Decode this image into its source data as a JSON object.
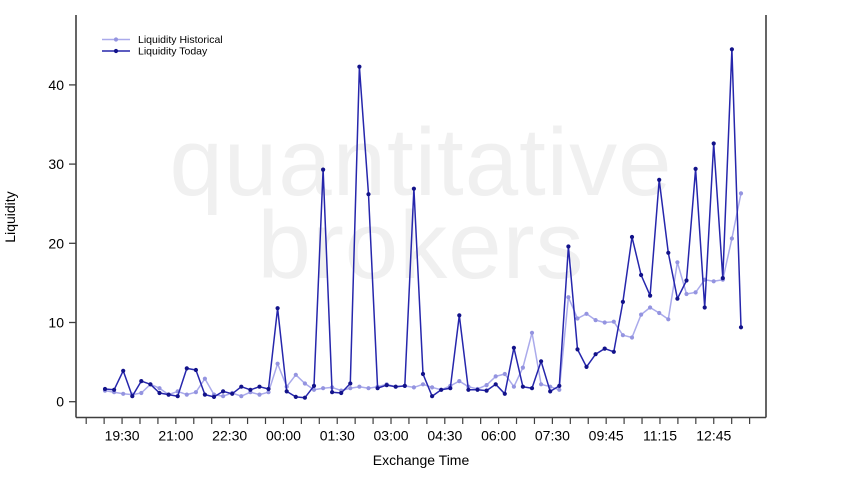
{
  "watermark": {
    "line1": "quantitative",
    "line2": "brokers"
  },
  "colors": {
    "background": "#ffffff",
    "axis": "#3f3f3f",
    "tick_label": "#000000",
    "watermark": "#f0f0f0",
    "historical": "#aaaaeb",
    "historical_marker": "#9494e0",
    "today": "#2626ac",
    "today_marker": "#12128a"
  },
  "chart_data": {
    "type": "line",
    "title": "",
    "xlabel": "Exchange Time",
    "ylabel": "Liquidity",
    "grid": false,
    "legend_position": "top-left",
    "x_tick_labels": [
      "19:30",
      "21:00",
      "22:30",
      "00:00",
      "01:30",
      "03:00",
      "04:30",
      "06:00",
      "07:30",
      "09:45",
      "11:15",
      "12:45"
    ],
    "y_ticks": [
      0,
      10,
      20,
      30,
      40
    ],
    "ylim": [
      0,
      48.8
    ],
    "series": [
      {
        "name": "Liquidity Historical",
        "color": "#aaaaeb",
        "marker_color": "#9494e0",
        "values": [
          1.4,
          1.2,
          1.0,
          0.9,
          1.1,
          2.2,
          1.7,
          0.9,
          1.3,
          0.9,
          1.2,
          2.9,
          0.9,
          0.7,
          1.1,
          0.7,
          1.2,
          0.9,
          1.2,
          4.8,
          1.9,
          3.4,
          2.3,
          1.5,
          1.7,
          1.8,
          1.4,
          1.7,
          1.9,
          1.7,
          1.9,
          2.2,
          1.9,
          2.0,
          1.8,
          2.2,
          1.8,
          1.5,
          2.0,
          2.6,
          1.9,
          1.6,
          2.1,
          3.2,
          3.5,
          1.9,
          4.3,
          8.7,
          2.2,
          1.9,
          1.5,
          13.2,
          10.5,
          11.1,
          10.3,
          10.0,
          10.1,
          8.4,
          8.1,
          11.0,
          11.9,
          11.2,
          10.4,
          17.6,
          13.6,
          13.8,
          15.4,
          15.2,
          15.4,
          20.6,
          26.3
        ]
      },
      {
        "name": "Liquidity Today",
        "color": "#2626ac",
        "marker_color": "#12128a",
        "values": [
          1.6,
          1.5,
          3.9,
          0.7,
          2.6,
          2.2,
          1.1,
          0.9,
          0.7,
          4.2,
          4.0,
          0.9,
          0.6,
          1.3,
          1.0,
          1.9,
          1.5,
          1.9,
          1.6,
          11.8,
          1.3,
          0.6,
          0.5,
          2.0,
          29.3,
          1.2,
          1.1,
          2.3,
          42.3,
          26.2,
          1.7,
          2.1,
          1.9,
          2.0,
          26.9,
          3.5,
          0.7,
          1.5,
          1.7,
          10.9,
          1.5,
          1.5,
          1.4,
          2.2,
          1.0,
          6.8,
          1.9,
          1.7,
          5.1,
          1.3,
          2.0,
          19.6,
          6.6,
          4.4,
          6.0,
          6.7,
          6.3,
          12.6,
          20.8,
          16.0,
          13.4,
          28.0,
          18.8,
          13.0,
          15.3,
          29.4,
          11.9,
          32.6,
          15.6,
          44.5,
          9.4
        ]
      }
    ]
  }
}
